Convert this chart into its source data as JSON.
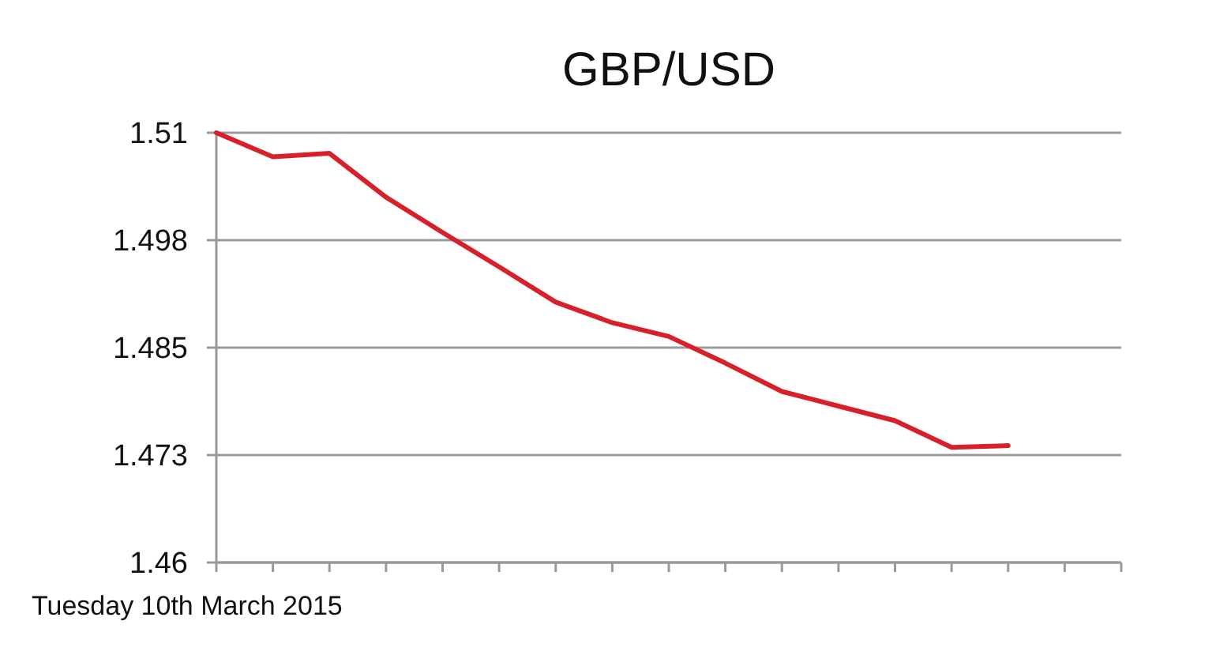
{
  "chart_data": {
    "type": "line",
    "title": "GBP/USD",
    "categories": [
      null,
      null,
      null,
      null,
      null,
      null,
      null,
      null,
      null,
      null,
      null,
      null,
      null,
      null,
      null,
      null,
      null
    ],
    "series": [
      {
        "color": "#d7202a",
        "values": [
          1.51,
          1.5072,
          1.5076,
          1.5025,
          1.4984,
          1.4944,
          1.4903,
          1.4879,
          1.4863,
          1.4832,
          1.4799,
          1.4782,
          1.4765,
          1.4734,
          1.4736,
          null,
          null
        ]
      }
    ],
    "ylim": [
      1.46,
      1.51
    ],
    "yticks": [
      1.46,
      {
        "value": 1.4725,
        "label": "1.473"
      },
      1.485,
      {
        "value": 1.4975,
        "label": "1.498"
      },
      1.51
    ],
    "grid": "y",
    "marker": "none",
    "line_style": "solid",
    "annotations": [
      "Tuesday 10th March 2015"
    ]
  }
}
